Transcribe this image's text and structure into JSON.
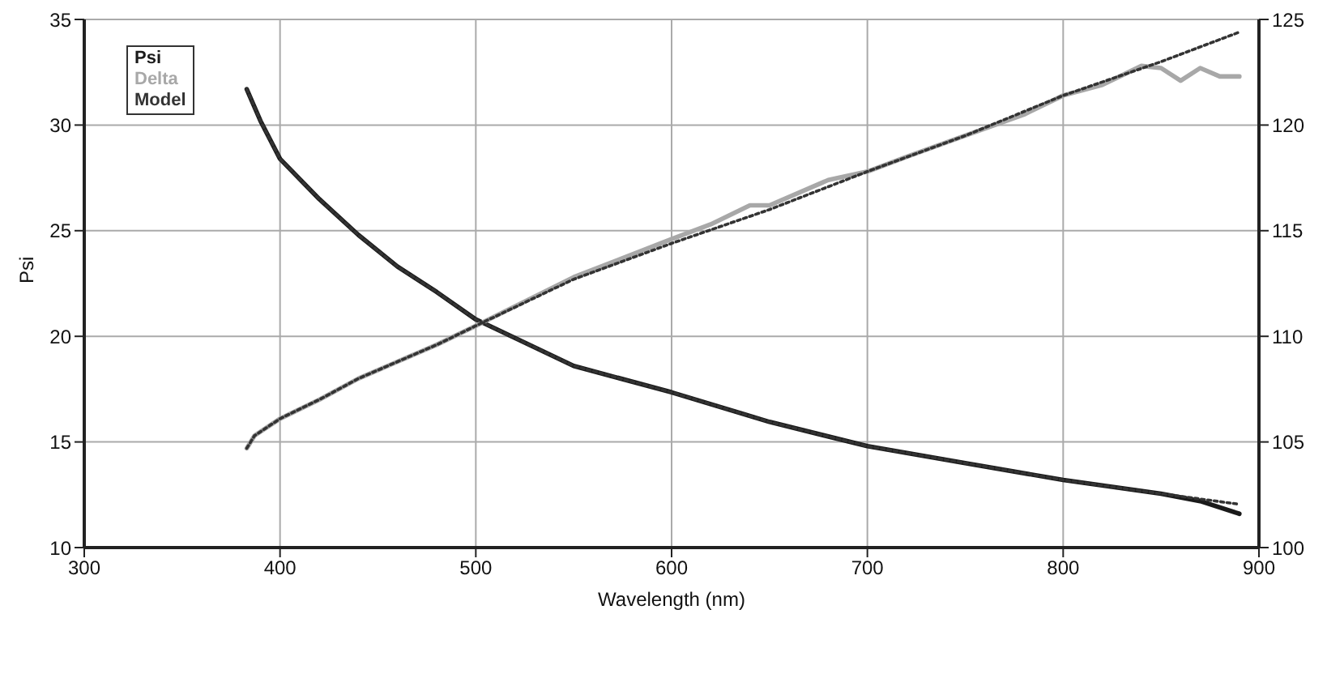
{
  "chart_data": {
    "type": "line",
    "xlabel": "Wavelength (nm)",
    "ylabel": "Psi",
    "xlim": [
      300,
      900
    ],
    "xticks": [
      300,
      400,
      500,
      600,
      700,
      800,
      900
    ],
    "ylim": [
      10,
      35
    ],
    "yticks": [
      10,
      15,
      20,
      25,
      30,
      35
    ],
    "y2lim": [
      100,
      125
    ],
    "y2ticks": [
      100,
      105,
      110,
      115,
      120,
      125
    ],
    "grid": true,
    "legend": "top left",
    "marker": "none",
    "series": [
      {
        "name": "Psi",
        "color": "#1a1a1a",
        "line_style": "solid",
        "x": [
          383,
          390,
          400,
          420,
          440,
          460,
          480,
          500,
          550,
          600,
          650,
          700,
          750,
          800,
          850,
          870,
          890
        ],
        "values": [
          31.7,
          30.2,
          28.4,
          26.5,
          24.8,
          23.3,
          22.1,
          20.8,
          18.6,
          17.35,
          15.95,
          14.8,
          14.0,
          13.2,
          12.55,
          12.2,
          11.6
        ]
      },
      {
        "name": "Delta",
        "color": "#a8a8a8",
        "line_style": "solid",
        "axis": "y2",
        "x": [
          383,
          387,
          400,
          420,
          440,
          460,
          480,
          500,
          550,
          600,
          620,
          640,
          650,
          680,
          700,
          720,
          750,
          780,
          800,
          820,
          840,
          850,
          860,
          870,
          880,
          890
        ],
        "values": [
          104.7,
          105.3,
          106.1,
          107.0,
          108.0,
          108.8,
          109.6,
          110.5,
          112.8,
          114.6,
          115.3,
          116.2,
          116.2,
          117.4,
          117.8,
          118.5,
          119.5,
          120.5,
          121.4,
          121.9,
          122.8,
          122.7,
          122.1,
          122.7,
          122.3,
          122.3
        ]
      },
      {
        "name": "Model",
        "color": "#333333",
        "line_style": "dotted",
        "x": [
          383,
          390,
          400,
          420,
          440,
          460,
          480,
          500,
          550,
          600,
          650,
          700,
          750,
          800,
          850,
          870,
          890
        ],
        "values": [
          31.7,
          30.2,
          28.4,
          26.5,
          24.8,
          23.3,
          22.1,
          20.8,
          18.6,
          17.35,
          15.95,
          14.8,
          14.0,
          13.2,
          12.55,
          12.3,
          12.05
        ]
      },
      {
        "color": "#333333",
        "line_style": "dotted",
        "axis": "y2",
        "x": [
          383,
          387,
          400,
          420,
          440,
          460,
          480,
          500,
          550,
          600,
          650,
          700,
          750,
          800,
          850,
          890
        ],
        "values": [
          104.7,
          105.3,
          106.1,
          107.0,
          108.0,
          108.8,
          109.6,
          110.5,
          112.7,
          114.4,
          116.0,
          117.8,
          119.5,
          121.4,
          123.0,
          124.4
        ]
      }
    ]
  }
}
